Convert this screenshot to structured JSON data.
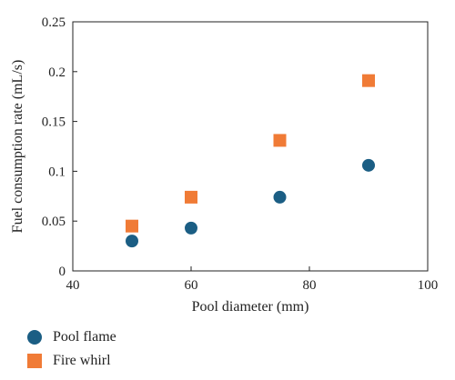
{
  "chart_data": {
    "type": "scatter",
    "title": "",
    "xlabel": "Pool diameter (mm)",
    "ylabel": "Fuel consumption rate (mL/s)",
    "xlim": [
      40,
      100
    ],
    "ylim": [
      0,
      0.25
    ],
    "xticks": [
      40,
      60,
      80,
      100
    ],
    "yticks": [
      0,
      0.05,
      0.1,
      0.15,
      0.2,
      0.25
    ],
    "xtick_labels": [
      "40",
      "60",
      "80",
      "100"
    ],
    "ytick_labels": [
      "0",
      "0.05",
      "0.1",
      "0.15",
      "0.2",
      "0.25"
    ],
    "grid": false,
    "legend_placement": "bottom-left, below plot",
    "series": [
      {
        "name": "Pool flame",
        "marker": "circle",
        "color": "#1b5e84",
        "x": [
          50,
          60,
          75,
          90
        ],
        "y": [
          0.03,
          0.043,
          0.074,
          0.106
        ]
      },
      {
        "name": "Fire whirl",
        "marker": "square",
        "color": "#f07b36",
        "x": [
          50,
          60,
          75,
          90
        ],
        "y": [
          0.045,
          0.074,
          0.131,
          0.191
        ]
      }
    ]
  }
}
